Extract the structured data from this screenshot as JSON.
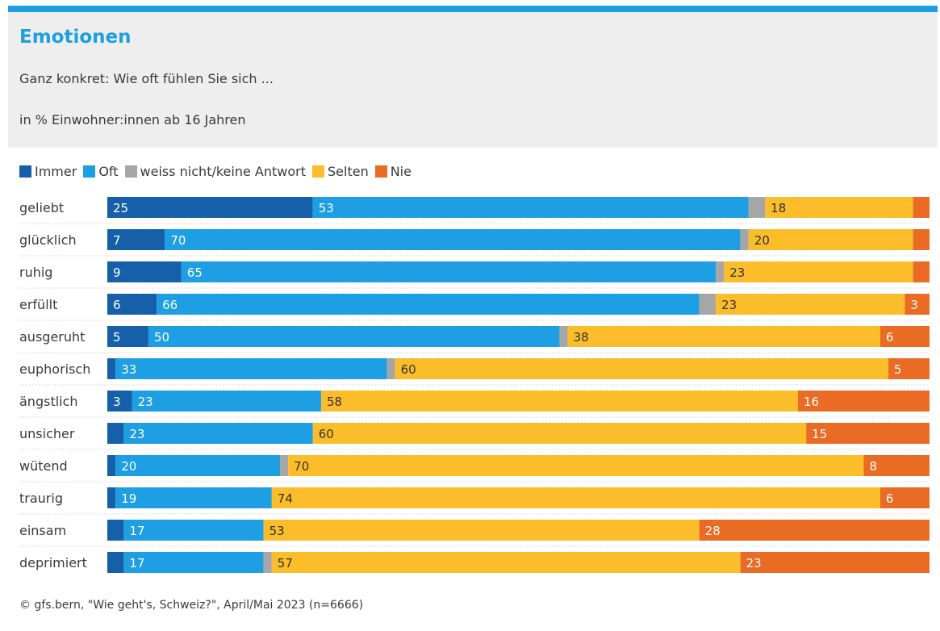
{
  "header": {
    "title": "Emotionen",
    "subtitle": "Ganz konkret: Wie oft fühlen Sie sich ...",
    "unit_note": "in % Einwohner:innen ab 16 Jahren"
  },
  "source": "© gfs.bern, \"Wie geht's, Schweiz?\", April/Mai 2023 (n=6666)",
  "colors": {
    "accent": "#1e9ee3",
    "immer": "#1560a8",
    "oft": "#1e9ee3",
    "weiss_nicht": "#a6a6a6",
    "selten": "#fbbd2a",
    "nie": "#e96b24"
  },
  "legend": [
    {
      "label": "Immer",
      "color": "#1560a8"
    },
    {
      "label": "Oft",
      "color": "#1e9ee3"
    },
    {
      "label": "weiss nicht/keine Antwort",
      "color": "#a6a6a6"
    },
    {
      "label": "Selten",
      "color": "#fbbd2a"
    },
    {
      "label": "Nie",
      "color": "#e96b24"
    }
  ],
  "chart_data": {
    "type": "bar",
    "orientation": "horizontal",
    "stacked": true,
    "title": "Emotionen",
    "subtitle": "Ganz konkret: Wie oft fühlen Sie sich ...",
    "unit": "in % Einwohner:innen ab 16 Jahren",
    "xlim": [
      0,
      100
    ],
    "legend_position": "top-left",
    "categories": [
      "geliebt",
      "glücklich",
      "ruhig",
      "erfüllt",
      "ausgeruht",
      "euphorisch",
      "ängstlich",
      "unsicher",
      "wütend",
      "traurig",
      "einsam",
      "deprimiert"
    ],
    "series": [
      {
        "name": "Immer",
        "color": "#1560a8",
        "values": [
          25,
          7,
          9,
          6,
          5,
          1,
          3,
          2,
          1,
          1,
          2,
          2
        ],
        "labels": [
          "25",
          "7",
          "9",
          "6",
          "5",
          "",
          "3",
          "",
          "",
          "",
          "",
          ""
        ]
      },
      {
        "name": "Oft",
        "color": "#1e9ee3",
        "values": [
          53,
          70,
          65,
          66,
          50,
          33,
          23,
          23,
          20,
          19,
          17,
          17
        ],
        "labels": [
          "53",
          "70",
          "65",
          "66",
          "50",
          "33",
          "23",
          "23",
          "20",
          "19",
          "17",
          "17"
        ]
      },
      {
        "name": "weiss nicht/keine Antwort",
        "color": "#a6a6a6",
        "values": [
          2,
          1,
          1,
          2,
          1,
          1,
          0,
          0,
          1,
          0,
          0,
          1
        ],
        "labels": [
          "",
          "",
          "",
          "",
          "",
          "",
          "",
          "",
          "",
          "",
          "",
          ""
        ]
      },
      {
        "name": "Selten",
        "color": "#fbbd2a",
        "values": [
          18,
          20,
          23,
          23,
          38,
          60,
          58,
          60,
          70,
          74,
          53,
          57
        ],
        "labels": [
          "18",
          "20",
          "23",
          "23",
          "38",
          "60",
          "58",
          "60",
          "70",
          "74",
          "53",
          "57"
        ]
      },
      {
        "name": "Nie",
        "color": "#e96b24",
        "values": [
          2,
          2,
          2,
          3,
          6,
          5,
          16,
          15,
          8,
          6,
          28,
          23
        ],
        "labels": [
          "",
          "",
          "",
          "3",
          "6",
          "5",
          "16",
          "15",
          "8",
          "6",
          "28",
          "23"
        ]
      }
    ]
  }
}
